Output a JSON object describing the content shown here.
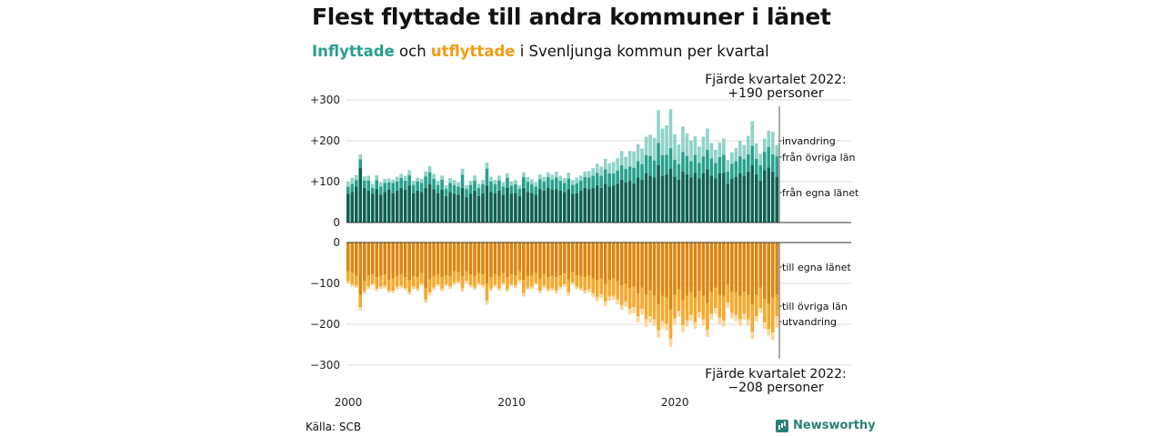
{
  "title": "Flest flyttade till andra kommuner i länet",
  "subtitle": {
    "in_word": "Inflyttade",
    "mid1": " och ",
    "out_word": "utflyttade",
    "rest": " i Svenljunga kommun per kvartal"
  },
  "source": "Källa: SCB",
  "brand": "Newsworthy",
  "colors": {
    "in_local": "#0f6151",
    "in_other": "#27a08c",
    "in_abroad": "#8fd3c7",
    "out_local": "#dd860f",
    "out_other": "#f6a82a",
    "out_abroad": "#fbd59a",
    "brand": "#2a7f75"
  },
  "chart_data": {
    "type": "bar",
    "stacked": true,
    "x_start": 2000,
    "period": "quarter",
    "x_tick_labels": [
      "2000",
      "2010",
      "2020"
    ],
    "y_ticks_top": [
      "+300",
      "+200",
      "+100",
      "0"
    ],
    "y_ticks_bottom": [
      "0",
      "−100",
      "−200",
      "−300"
    ],
    "ylim_top": [
      0,
      300
    ],
    "ylim_bottom": [
      -300,
      0
    ],
    "callout_top": {
      "line1": "Fjärde kvartalet 2022:",
      "line2": "+190 personer"
    },
    "callout_bottom": {
      "line1": "Fjärde kvartalet 2022:",
      "line2": "−208 personer"
    },
    "series_labels": {
      "in_abroad": "invandring",
      "in_other": "från övriga län",
      "in_local": "från egna länet",
      "out_local": "till egna länet",
      "out_other": "till övriga län",
      "out_abroad": "utvandring"
    },
    "inflow": {
      "local": [
        70,
        75,
        88,
        135,
        85,
        78,
        70,
        82,
        68,
        75,
        80,
        72,
        78,
        85,
        80,
        90,
        72,
        78,
        75,
        85,
        95,
        82,
        72,
        80,
        65,
        75,
        70,
        68,
        85,
        62,
        70,
        78,
        65,
        72,
        90,
        75,
        72,
        78,
        68,
        85,
        70,
        72,
        65,
        85,
        75,
        72,
        68,
        82,
        78,
        85,
        80,
        82,
        78,
        75,
        82,
        70,
        72,
        78,
        85,
        82,
        85,
        90,
        85,
        95,
        88,
        90,
        95,
        105,
        98,
        102,
        96,
        110,
        105,
        120,
        115,
        110,
        140,
        115,
        118,
        132,
        112,
        105,
        125,
        118,
        110,
        122,
        108,
        120,
        130,
        115,
        108,
        120,
        122,
        95,
        108,
        112,
        120,
        115,
        125,
        140,
        118,
        102,
        128,
        135,
        125,
        112
      ],
      "other": [
        18,
        20,
        16,
        20,
        18,
        25,
        15,
        22,
        20,
        22,
        18,
        25,
        22,
        24,
        22,
        26,
        20,
        22,
        22,
        28,
        28,
        25,
        20,
        25,
        18,
        22,
        22,
        20,
        32,
        20,
        22,
        25,
        20,
        22,
        42,
        25,
        22,
        25,
        20,
        24,
        20,
        22,
        18,
        26,
        24,
        22,
        20,
        24,
        22,
        26,
        25,
        28,
        24,
        22,
        26,
        22,
        24,
        25,
        26,
        28,
        30,
        32,
        30,
        35,
        32,
        30,
        32,
        35,
        33,
        35,
        38,
        40,
        38,
        45,
        48,
        42,
        55,
        50,
        48,
        50,
        42,
        38,
        48,
        45,
        40,
        44,
        38,
        42,
        48,
        42,
        38,
        40,
        44,
        30,
        36,
        38,
        42,
        40,
        42,
        48,
        38,
        38,
        45,
        50,
        42,
        50
      ],
      "abroad": [
        12,
        14,
        12,
        12,
        10,
        12,
        10,
        12,
        10,
        10,
        10,
        8,
        12,
        10,
        12,
        12,
        10,
        10,
        10,
        12,
        15,
        12,
        10,
        10,
        8,
        12,
        12,
        10,
        15,
        10,
        10,
        12,
        10,
        10,
        15,
        12,
        10,
        12,
        10,
        12,
        10,
        10,
        8,
        12,
        12,
        12,
        10,
        12,
        12,
        12,
        12,
        14,
        12,
        12,
        14,
        12,
        14,
        12,
        14,
        16,
        18,
        22,
        22,
        26,
        25,
        28,
        30,
        35,
        30,
        38,
        40,
        42,
        38,
        45,
        52,
        55,
        80,
        65,
        72,
        95,
        62,
        48,
        62,
        55,
        50,
        45,
        40,
        48,
        52,
        38,
        32,
        36,
        40,
        28,
        28,
        32,
        38,
        35,
        45,
        60,
        38,
        28,
        32,
        40,
        55,
        28
      ]
    },
    "outflow": {
      "local": [
        70,
        75,
        82,
        128,
        95,
        80,
        78,
        85,
        82,
        78,
        92,
        88,
        82,
        78,
        85,
        92,
        82,
        85,
        75,
        112,
        90,
        82,
        78,
        85,
        80,
        82,
        70,
        72,
        82,
        70,
        78,
        82,
        75,
        78,
        100,
        85,
        78,
        82,
        75,
        85,
        78,
        80,
        70,
        92,
        82,
        80,
        75,
        88,
        78,
        85,
        82,
        85,
        80,
        76,
        90,
        72,
        80,
        82,
        85,
        80,
        88,
        92,
        88,
        100,
        92,
        88,
        95,
        105,
        100,
        110,
        108,
        125,
        110,
        128,
        118,
        130,
        150,
        130,
        135,
        165,
        128,
        115,
        140,
        130,
        122,
        135,
        118,
        130,
        148,
        120,
        110,
        128,
        130,
        102,
        120,
        122,
        130,
        120,
        128,
        150,
        128,
        110,
        138,
        150,
        135,
        128
      ],
      "other": [
        25,
        28,
        24,
        30,
        24,
        28,
        22,
        28,
        26,
        28,
        26,
        30,
        26,
        28,
        26,
        30,
        26,
        28,
        26,
        28,
        32,
        28,
        24,
        28,
        22,
        26,
        28,
        24,
        30,
        24,
        26,
        28,
        24,
        26,
        42,
        28,
        26,
        30,
        24,
        30,
        24,
        26,
        22,
        32,
        28,
        28,
        24,
        30,
        28,
        30,
        30,
        32,
        28,
        26,
        32,
        26,
        28,
        30,
        32,
        34,
        36,
        42,
        38,
        44,
        40,
        42,
        44,
        48,
        45,
        52,
        50,
        55,
        52,
        60,
        62,
        58,
        65,
        62,
        64,
        70,
        58,
        52,
        62,
        60,
        55,
        60,
        52,
        58,
        65,
        55,
        50,
        56,
        60,
        45,
        52,
        55,
        58,
        54,
        60,
        68,
        52,
        50,
        58,
        62,
        85,
        52
      ],
      "abroad": [
        6,
        6,
        5,
        8,
        6,
        6,
        5,
        6,
        6,
        6,
        5,
        6,
        6,
        6,
        5,
        6,
        6,
        6,
        5,
        8,
        8,
        6,
        5,
        6,
        5,
        6,
        6,
        5,
        8,
        5,
        6,
        6,
        5,
        6,
        10,
        6,
        6,
        6,
        5,
        6,
        5,
        6,
        5,
        8,
        6,
        6,
        5,
        6,
        6,
        6,
        6,
        8,
        6,
        6,
        8,
        6,
        6,
        6,
        8,
        8,
        10,
        10,
        10,
        12,
        10,
        10,
        12,
        12,
        12,
        14,
        15,
        15,
        14,
        18,
        16,
        16,
        18,
        16,
        16,
        20,
        16,
        14,
        18,
        16,
        15,
        16,
        14,
        16,
        18,
        14,
        13,
        15,
        16,
        12,
        14,
        15,
        16,
        15,
        16,
        18,
        14,
        12,
        16,
        16,
        18,
        28
      ]
    }
  }
}
